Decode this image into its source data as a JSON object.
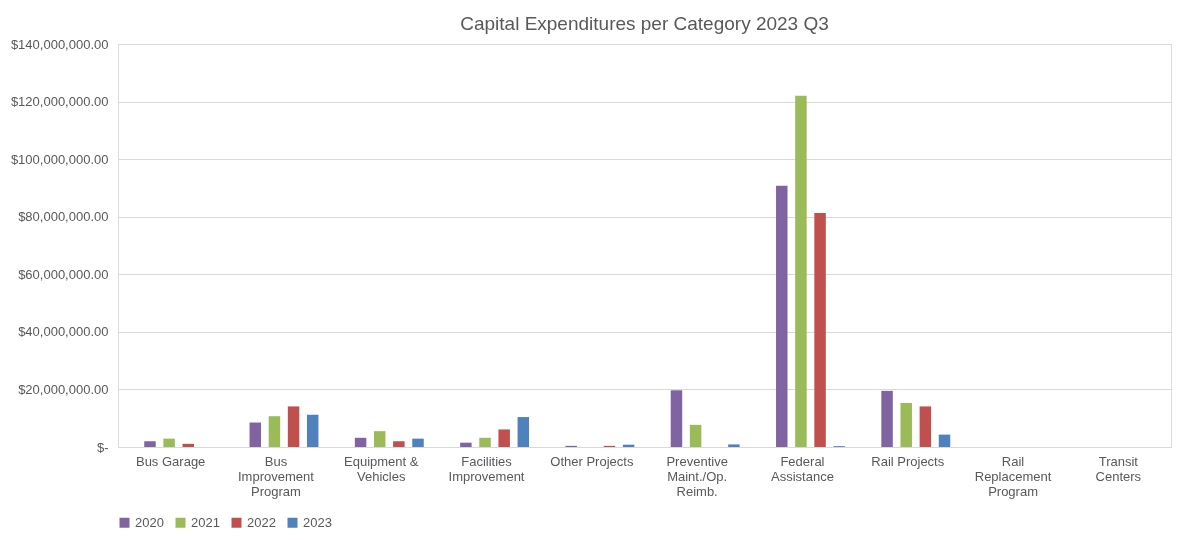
{
  "chart_data": {
    "type": "bar",
    "title": "Capital Expenditures per Category 2023 Q3",
    "categories": [
      "Bus Garage",
      "Bus Improvement Program",
      "Equipment & Vehicles",
      "Facilities Improvement",
      "Other Projects",
      "Preventive Maint./Op. Reimb.",
      "Federal Assistance",
      "Rail Projects",
      "Rail Replacement Program",
      "Transit Centers"
    ],
    "series": [
      {
        "name": "2020",
        "color": "#8064a2",
        "values": [
          2000000,
          8500000,
          3200000,
          1500000,
          400000,
          19700000,
          90800000,
          19500000,
          null,
          null
        ]
      },
      {
        "name": "2021",
        "color": "#9bbb59",
        "values": [
          2900000,
          10700000,
          5500000,
          3200000,
          null,
          7700000,
          122000000,
          15300000,
          null,
          null
        ]
      },
      {
        "name": "2022",
        "color": "#c0504d",
        "values": [
          1100000,
          14100000,
          2000000,
          6100000,
          400000,
          null,
          81300000,
          14100000,
          null,
          null
        ]
      },
      {
        "name": "2023",
        "color": "#4f81bd",
        "values": [
          null,
          11200000,
          2900000,
          10400000,
          800000,
          900000,
          300000,
          4300000,
          null,
          null
        ]
      }
    ],
    "ylim": [
      0,
      140000000
    ],
    "yticks": [
      {
        "value": 0,
        "label": "$-"
      },
      {
        "value": 20000000,
        "label": "$20,000,000.00"
      },
      {
        "value": 40000000,
        "label": "$40,000,000.00"
      },
      {
        "value": 60000000,
        "label": "$60,000,000.00"
      },
      {
        "value": 80000000,
        "label": "$80,000,000.00"
      },
      {
        "value": 100000000,
        "label": "$100,000,000.00"
      },
      {
        "value": 120000000,
        "label": "$120,000,000.00"
      },
      {
        "value": 140000000,
        "label": "$140,000,000.00"
      }
    ],
    "grid": "y",
    "legend": "bottom"
  }
}
